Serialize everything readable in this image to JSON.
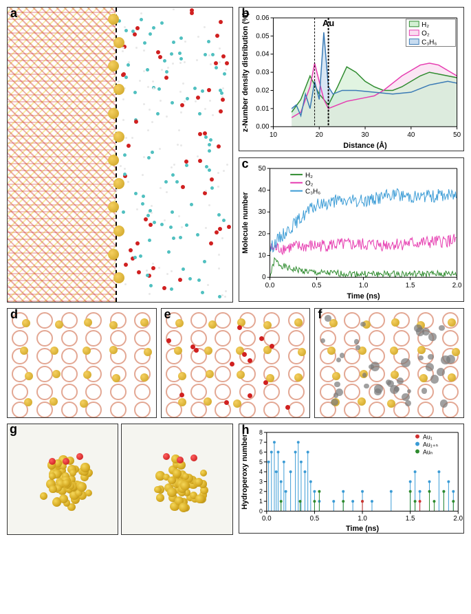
{
  "panels": {
    "a": {
      "label": "a",
      "au_label": "Au",
      "au_line_left_pct": 48,
      "zeolite_colors": {
        "red": "#c82020",
        "yellow": "#e6c800"
      },
      "gold": "#d4a820",
      "mol_colors": {
        "O": "#d02020",
        "C": "#50c0c0",
        "H": "#ffffff"
      }
    },
    "b": {
      "label": "b",
      "xlabel": "Distance (Å)",
      "ylabel": "z-Number density distribution (%)",
      "xlim": [
        10,
        50
      ],
      "xtick_step": 10,
      "ylim": [
        0,
        0.06
      ],
      "ytick_step": 0.01,
      "au_annotation": "Au",
      "au_line1_x": 19,
      "au_line2_x": 22,
      "background": "#ffffff",
      "legend_pos": "top-right",
      "series": [
        {
          "name": "H₂",
          "line_color": "#2e8b2e",
          "fill_color": "#d4f0d4",
          "points": [
            [
              14,
              0.008
            ],
            [
              16,
              0.015
            ],
            [
              18,
              0.028
            ],
            [
              20,
              0.018
            ],
            [
              22,
              0.012
            ],
            [
              24,
              0.022
            ],
            [
              26,
              0.033
            ],
            [
              28,
              0.03
            ],
            [
              30,
              0.025
            ],
            [
              32,
              0.022
            ],
            [
              34,
              0.02
            ],
            [
              36,
              0.02
            ],
            [
              38,
              0.022
            ],
            [
              40,
              0.025
            ],
            [
              42,
              0.028
            ],
            [
              44,
              0.03
            ],
            [
              46,
              0.029
            ],
            [
              48,
              0.028
            ],
            [
              50,
              0.027
            ]
          ]
        },
        {
          "name": "O₂",
          "line_color": "#e63cb0",
          "fill_color": "#fadcf0",
          "points": [
            [
              14,
              0.005
            ],
            [
              16,
              0.008
            ],
            [
              18,
              0.022
            ],
            [
              19,
              0.035
            ],
            [
              20,
              0.025
            ],
            [
              21,
              0.015
            ],
            [
              22,
              0.01
            ],
            [
              24,
              0.012
            ],
            [
              26,
              0.014
            ],
            [
              28,
              0.015
            ],
            [
              30,
              0.016
            ],
            [
              32,
              0.017
            ],
            [
              34,
              0.02
            ],
            [
              36,
              0.024
            ],
            [
              38,
              0.028
            ],
            [
              40,
              0.031
            ],
            [
              42,
              0.034
            ],
            [
              44,
              0.035
            ],
            [
              46,
              0.034
            ],
            [
              48,
              0.031
            ],
            [
              50,
              0.028
            ]
          ]
        },
        {
          "name": "C₃H₆",
          "line_color": "#3a7ab5",
          "fill_color": "#c8dcf0",
          "points": [
            [
              14,
              0.01
            ],
            [
              15,
              0.012
            ],
            [
              16,
              0.006
            ],
            [
              17,
              0.018
            ],
            [
              18,
              0.01
            ],
            [
              19,
              0.025
            ],
            [
              20,
              0.015
            ],
            [
              21,
              0.052
            ],
            [
              22,
              0.022
            ],
            [
              23,
              0.018
            ],
            [
              25,
              0.02
            ],
            [
              28,
              0.02
            ],
            [
              32,
              0.019
            ],
            [
              36,
              0.018
            ],
            [
              40,
              0.019
            ],
            [
              44,
              0.023
            ],
            [
              48,
              0.025
            ],
            [
              50,
              0.024
            ]
          ]
        }
      ]
    },
    "c": {
      "label": "c",
      "xlabel": "Time (ns)",
      "ylabel": "Molecule number",
      "xlim": [
        0,
        2.0
      ],
      "xtick_step": 0.5,
      "ylim": [
        0,
        50
      ],
      "ytick_step": 10,
      "background": "#ffffff",
      "legend_pos": "top-left-inset",
      "series": [
        {
          "name": "H₂",
          "line_color": "#2e8b2e",
          "noise": 1.5,
          "base": [
            [
              0,
              0
            ],
            [
              0.05,
              8
            ],
            [
              0.1,
              6
            ],
            [
              0.2,
              4
            ],
            [
              0.5,
              2
            ],
            [
              1.0,
              1.5
            ],
            [
              1.5,
              1.5
            ],
            [
              2.0,
              1.5
            ]
          ]
        },
        {
          "name": "O₂",
          "line_color": "#e63cb0",
          "noise": 3,
          "base": [
            [
              0,
              13
            ],
            [
              0.3,
              14
            ],
            [
              0.7,
              15
            ],
            [
              1.2,
              15
            ],
            [
              1.7,
              16
            ],
            [
              2.0,
              17
            ]
          ]
        },
        {
          "name": "C₃H₆",
          "line_color": "#3a9bd5",
          "noise": 3,
          "base": [
            [
              0,
              13
            ],
            [
              0.1,
              18
            ],
            [
              0.2,
              22
            ],
            [
              0.3,
              26
            ],
            [
              0.4,
              30
            ],
            [
              0.5,
              33
            ],
            [
              0.7,
              35
            ],
            [
              1.0,
              35
            ],
            [
              1.3,
              38
            ],
            [
              1.6,
              37
            ],
            [
              2.0,
              38
            ]
          ]
        }
      ]
    },
    "d": {
      "label": "d"
    },
    "e": {
      "label": "e"
    },
    "f": {
      "label": "f"
    },
    "g": {
      "label": "g"
    },
    "h": {
      "label": "h",
      "xlabel": "Time (ns)",
      "ylabel": "Hydroperoxy number",
      "xlim": [
        0,
        2.0
      ],
      "xtick_step": 0.5,
      "ylim": [
        0,
        8
      ],
      "ytick_step": 1,
      "background": "#ffffff",
      "legend_pos": "top-right",
      "series": [
        {
          "name": "Au₁",
          "line_color": "#d03030",
          "marker": "circle"
        },
        {
          "name": "Au₁₊ₙ",
          "line_color": "#3a9bd5",
          "marker": "circle"
        },
        {
          "name": "Auₙ",
          "line_color": "#2e8b2e",
          "marker": "circle"
        }
      ],
      "spike_data": {
        "Au1n": [
          [
            0.02,
            5
          ],
          [
            0.05,
            6
          ],
          [
            0.08,
            7
          ],
          [
            0.1,
            4
          ],
          [
            0.12,
            6
          ],
          [
            0.15,
            3
          ],
          [
            0.18,
            5
          ],
          [
            0.2,
            2
          ],
          [
            0.25,
            4
          ],
          [
            0.3,
            6
          ],
          [
            0.33,
            7
          ],
          [
            0.36,
            5
          ],
          [
            0.4,
            4
          ],
          [
            0.43,
            6
          ],
          [
            0.46,
            3
          ],
          [
            0.5,
            2
          ],
          [
            0.55,
            1
          ],
          [
            0.7,
            1
          ],
          [
            0.8,
            2
          ],
          [
            0.9,
            1
          ],
          [
            1.0,
            2
          ],
          [
            1.1,
            1
          ],
          [
            1.3,
            2
          ],
          [
            1.5,
            3
          ],
          [
            1.55,
            4
          ],
          [
            1.6,
            2
          ],
          [
            1.7,
            3
          ],
          [
            1.8,
            4
          ],
          [
            1.85,
            2
          ],
          [
            1.9,
            3
          ],
          [
            1.95,
            2
          ]
        ],
        "Aun": [
          [
            0.15,
            1
          ],
          [
            0.35,
            1
          ],
          [
            0.5,
            1
          ],
          [
            0.55,
            2
          ],
          [
            0.8,
            1
          ],
          [
            1.0,
            1
          ],
          [
            1.5,
            2
          ],
          [
            1.55,
            1
          ],
          [
            1.7,
            2
          ],
          [
            1.75,
            1
          ],
          [
            1.85,
            2
          ],
          [
            1.95,
            1
          ]
        ],
        "Au1": [
          [
            1.0,
            1
          ],
          [
            1.6,
            1
          ]
        ]
      }
    }
  },
  "fonts": {
    "label_size": 11,
    "tick_size": 10
  }
}
